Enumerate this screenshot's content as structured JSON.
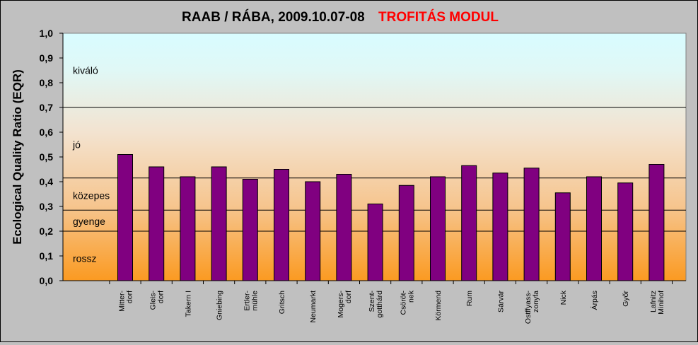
{
  "chart_data": {
    "type": "bar",
    "title_main": "RAAB / RÁBA, 2009.10.07-08",
    "title_accent": "TROFITÁS MODUL",
    "ylabel": "Ecological Quality Ratio (EQR)",
    "xlabel": "",
    "ylim": [
      0,
      1.0
    ],
    "yticks": [
      "0,0",
      "0,1",
      "0,2",
      "0,3",
      "0,4",
      "0,5",
      "0,6",
      "0,7",
      "0,8",
      "0,9",
      "1,0"
    ],
    "grid": false,
    "bar_color": "#800080",
    "title_accent_color": "#ff0000",
    "categories": [
      "Mitter-\ndorf",
      "Gleis-\ndorf",
      "Takern I",
      "Gniebing",
      "Ertler-\nmühle",
      "Gritsch",
      "Neumarkt",
      "Mogers-\ndorf",
      "Szent-\ngotthárd",
      "Csöröt-\nnek",
      "Körmend",
      "Rum",
      "Sárvár",
      "Ostffyass-\nzonyfa",
      "Nick",
      "Árpás",
      "Győr",
      "Lafnitz\nMinihof"
    ],
    "values": [
      0.51,
      0.46,
      0.42,
      0.46,
      0.41,
      0.45,
      0.4,
      0.43,
      0.31,
      0.385,
      0.42,
      0.465,
      0.435,
      0.455,
      0.355,
      0.42,
      0.395,
      0.47
    ],
    "class_boundaries": [
      0.2,
      0.285,
      0.415,
      0.7
    ],
    "class_labels": [
      {
        "label": "kiváló",
        "y": 0.85
      },
      {
        "label": "jó",
        "y": 0.55
      },
      {
        "label": "közepes",
        "y": 0.345
      },
      {
        "label": "gyenge",
        "y": 0.24
      },
      {
        "label": "rossz",
        "y": 0.09
      }
    ]
  }
}
